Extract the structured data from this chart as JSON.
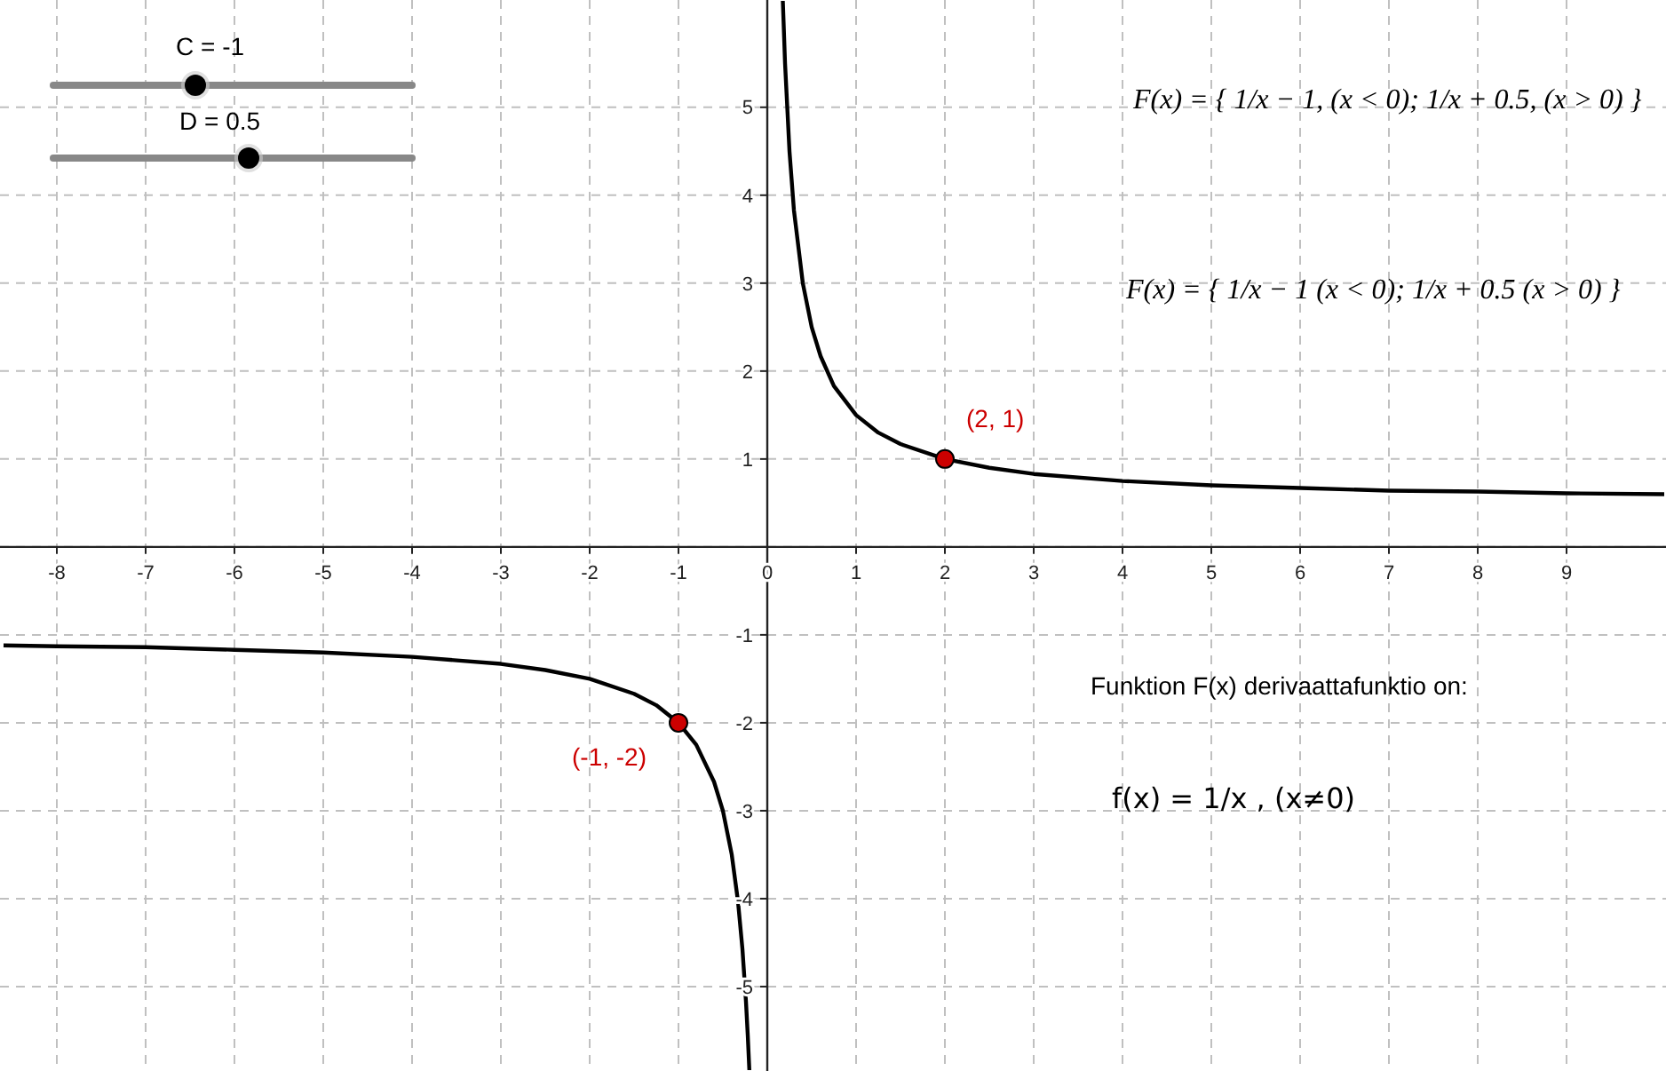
{
  "chart_data": {
    "type": "line",
    "xlim": [
      -8.64,
      10.12
    ],
    "ylim": [
      -5.96,
      6.22
    ],
    "xticks": [
      -8,
      -7,
      -6,
      -5,
      -4,
      -3,
      -2,
      -1,
      0,
      1,
      2,
      3,
      4,
      5,
      6,
      7,
      8,
      9
    ],
    "yticks": [
      -5,
      -4,
      -3,
      -2,
      -1,
      {
        "value": 0,
        "label": null
      },
      1,
      2,
      3,
      4,
      5
    ],
    "grid": true,
    "series": [
      {
        "color": "#000000",
        "x": [
          -8.6,
          -8,
          -7,
          -6,
          -5,
          -4,
          -3,
          -2.5,
          -2,
          -1.5,
          -1.25,
          -1,
          -0.8,
          -0.6,
          -0.5,
          -0.4,
          -0.33,
          -0.28,
          -0.24,
          -0.22,
          -0.202
        ],
        "values": [
          -1.12,
          -1.13,
          -1.14,
          -1.17,
          -1.2,
          -1.25,
          -1.33,
          -1.4,
          -1.5,
          -1.67,
          -1.8,
          -2,
          -2.25,
          -2.67,
          -3,
          -3.5,
          -4.03,
          -4.57,
          -5.17,
          -5.55,
          -5.95
        ]
      },
      {
        "color": "#000000",
        "x": [
          0.175,
          0.2,
          0.25,
          0.3,
          0.4,
          0.5,
          0.6,
          0.75,
          1,
          1.25,
          1.5,
          2,
          2.5,
          3,
          4,
          5,
          6,
          7,
          8,
          9,
          10.1
        ],
        "values": [
          6.21,
          5.5,
          4.5,
          3.83,
          3,
          2.5,
          2.17,
          1.83,
          1.5,
          1.3,
          1.17,
          1,
          0.9,
          0.83,
          0.75,
          0.7,
          0.67,
          0.64,
          0.63,
          0.61,
          0.6
        ]
      },
      {
        "type": "scatter",
        "color": "#cc0000",
        "x": [
          2,
          -1
        ],
        "values": [
          1,
          -2
        ],
        "value_labels": [
          "(2, 1)",
          "(-1, -2)"
        ]
      }
    ],
    "annotations": [
      "F(x) = { 1/x − 1,   (x < 0);  1/x + 0.5,   (x > 0) }",
      "F(x) = { 1/x − 1   (x < 0);  1/x + 0.5   (x > 0) }",
      "Funktion F(x) derivaattafunktio on:",
      "f(x) = 1/x ,    (x≠0)",
      "C = -1",
      "D = 0.5"
    ]
  }
}
